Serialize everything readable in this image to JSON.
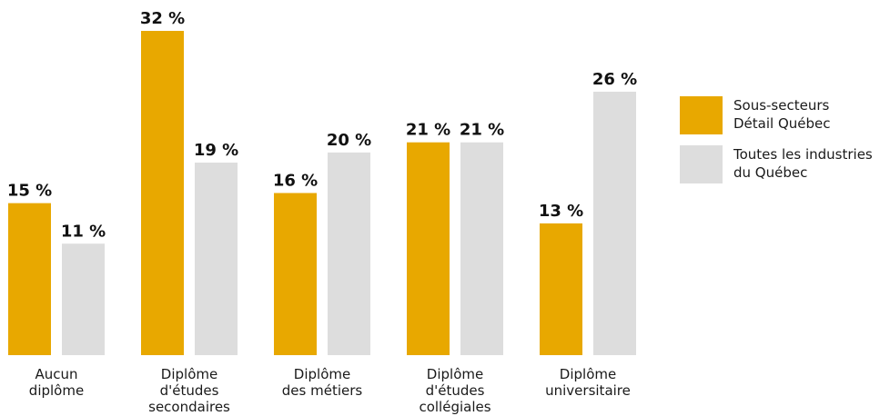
{
  "chart_data": {
    "type": "bar",
    "categories": [
      "Aucun\ndiplôme",
      "Diplôme\nd'études\nsecondaires",
      "Diplôme\ndes métiers",
      "Diplôme\nd'études\ncollégiales",
      "Diplôme\nuniversitaire"
    ],
    "series": [
      {
        "name": "Sous-secteurs\nDétail Québec",
        "color": "#E8A800",
        "values": [
          15,
          32,
          16,
          21,
          13
        ]
      },
      {
        "name": "Toutes les industries\ndu Québec",
        "color": "#DDDDDD",
        "values": [
          11,
          19,
          20,
          21,
          26
        ]
      }
    ],
    "value_suffix": " %",
    "ylim": [
      0,
      32
    ],
    "grid": false,
    "legend_position": "right",
    "title": "",
    "xlabel": "",
    "ylabel": ""
  }
}
